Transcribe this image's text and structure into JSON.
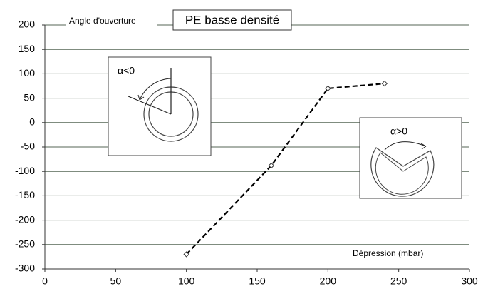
{
  "chart_data": {
    "type": "line",
    "title": "PE basse densité",
    "y_label": "Angle d'ouverture",
    "x_label": "Dépression (mbar)",
    "annotations": [
      "α<0",
      "α>0"
    ],
    "x": [
      100,
      160,
      200,
      240
    ],
    "values": [
      -270,
      -88,
      70,
      80
    ],
    "color": "#000000",
    "xlim": [
      0,
      300
    ],
    "xticks": [
      0,
      50,
      100,
      150,
      200,
      250,
      300
    ],
    "ylim": [
      -300,
      200
    ],
    "yticks": [
      -300,
      -250,
      -200,
      -150,
      -100,
      -50,
      0,
      50,
      100,
      150,
      200
    ],
    "grid": true
  }
}
